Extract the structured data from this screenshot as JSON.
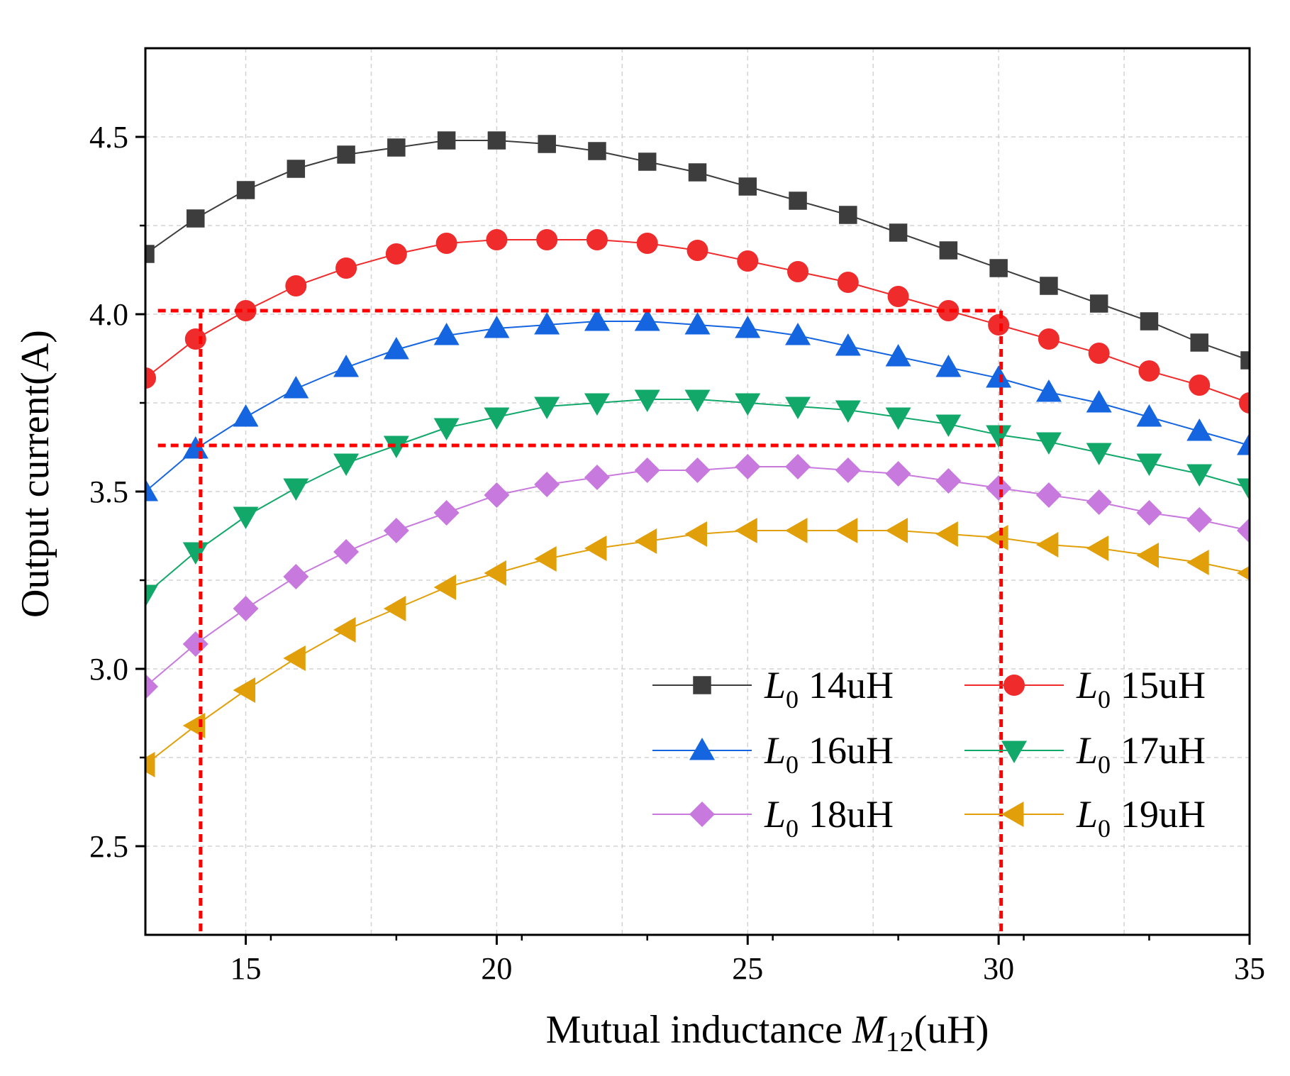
{
  "chart_data": {
    "type": "line",
    "xlabel": {
      "prefix": "Mutual inductance ",
      "symbol": "M",
      "subscript": "12",
      "suffix": "(uH)"
    },
    "ylabel": "Output current(A)",
    "xlim": [
      13,
      35
    ],
    "ylim": [
      2.25,
      4.75
    ],
    "x_ticks": [
      15,
      20,
      25,
      30,
      35
    ],
    "x_tick_labels": [
      "15",
      "20",
      "25",
      "30",
      "35"
    ],
    "y_ticks": [
      2.5,
      3.0,
      3.5,
      4.0,
      4.5
    ],
    "y_tick_labels": [
      "2.5",
      "3.0",
      "3.5",
      "4.0",
      "4.5"
    ],
    "grid": true,
    "legend_position": "lower-right",
    "x": [
      13,
      14,
      15,
      16,
      17,
      18,
      19,
      20,
      21,
      22,
      23,
      24,
      25,
      26,
      27,
      28,
      29,
      30,
      31,
      32,
      33,
      34,
      35
    ],
    "series": [
      {
        "symbol": "L",
        "subscript": "0",
        "name": "14uH",
        "color": "#3d3d3d",
        "marker": "square",
        "values": [
          4.17,
          4.27,
          4.35,
          4.41,
          4.45,
          4.47,
          4.49,
          4.49,
          4.48,
          4.46,
          4.43,
          4.4,
          4.36,
          4.32,
          4.28,
          4.23,
          4.18,
          4.13,
          4.08,
          4.03,
          3.98,
          3.92,
          3.87
        ]
      },
      {
        "symbol": "L",
        "subscript": "0",
        "name": "15uH",
        "color": "#f02b2b",
        "marker": "circle",
        "values": [
          3.82,
          3.93,
          4.01,
          4.08,
          4.13,
          4.17,
          4.2,
          4.21,
          4.21,
          4.21,
          4.2,
          4.18,
          4.15,
          4.12,
          4.09,
          4.05,
          4.01,
          3.97,
          3.93,
          3.89,
          3.84,
          3.8,
          3.75
        ]
      },
      {
        "symbol": "L",
        "subscript": "0",
        "name": "16uH",
        "color": "#1565e0",
        "marker": "triangle-up",
        "values": [
          3.5,
          3.62,
          3.71,
          3.79,
          3.85,
          3.9,
          3.94,
          3.96,
          3.97,
          3.98,
          3.98,
          3.97,
          3.96,
          3.94,
          3.91,
          3.88,
          3.85,
          3.82,
          3.78,
          3.75,
          3.71,
          3.67,
          3.63
        ]
      },
      {
        "symbol": "L",
        "subscript": "0",
        "name": "17uH",
        "color": "#12a86a",
        "marker": "triangle-down",
        "values": [
          3.21,
          3.33,
          3.43,
          3.51,
          3.58,
          3.63,
          3.68,
          3.71,
          3.74,
          3.75,
          3.76,
          3.76,
          3.75,
          3.74,
          3.73,
          3.71,
          3.69,
          3.66,
          3.64,
          3.61,
          3.58,
          3.55,
          3.51
        ]
      },
      {
        "symbol": "L",
        "subscript": "0",
        "name": "18uH",
        "color": "#c879dd",
        "marker": "diamond",
        "values": [
          2.95,
          3.07,
          3.17,
          3.26,
          3.33,
          3.39,
          3.44,
          3.49,
          3.52,
          3.54,
          3.56,
          3.56,
          3.57,
          3.57,
          3.56,
          3.55,
          3.53,
          3.51,
          3.49,
          3.47,
          3.44,
          3.42,
          3.39
        ]
      },
      {
        "symbol": "L",
        "subscript": "0",
        "name": "19uH",
        "color": "#e1a009",
        "marker": "triangle-left",
        "values": [
          2.73,
          2.84,
          2.94,
          3.03,
          3.11,
          3.17,
          3.23,
          3.27,
          3.31,
          3.34,
          3.36,
          3.38,
          3.39,
          3.39,
          3.39,
          3.39,
          3.38,
          3.37,
          3.35,
          3.34,
          3.32,
          3.3,
          3.27
        ]
      }
    ],
    "annotations": {
      "color": "#ff0000",
      "style": "dashed",
      "vertical_lines_x": [
        14.1,
        30.05
      ],
      "upper_hline_y": 4.01,
      "lower_hline_y": 3.63
    }
  }
}
